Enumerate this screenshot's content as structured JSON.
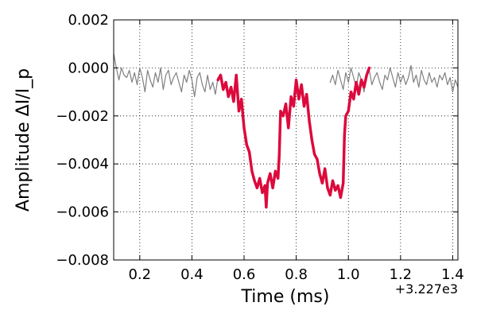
{
  "chart_data": {
    "type": "line",
    "xlabel": "Time (ms)",
    "ylabel": "Amplitude ΔI/I_p",
    "x_offset_label": "+3.227e3",
    "xlim": [
      0.1,
      1.42
    ],
    "ylim": [
      -0.008,
      0.002
    ],
    "xticks": [
      0.2,
      0.4,
      0.6,
      0.8,
      1.0,
      1.2,
      1.4
    ],
    "xtick_labels": [
      "0.2",
      "0.4",
      "0.6",
      "0.8",
      "1.0",
      "1.2",
      "1.4"
    ],
    "yticks": [
      0.002,
      0.0,
      -0.002,
      -0.004,
      -0.006,
      -0.008
    ],
    "ytick_labels": [
      "0.002",
      "0.000",
      "−0.002",
      "−0.004",
      "−0.006",
      "−0.008"
    ],
    "grid": true,
    "series": [
      {
        "color": "#808080",
        "points": [
          [
            0.1,
            0.0006
          ],
          [
            0.11,
            0.0
          ],
          [
            0.12,
            -0.0005
          ],
          [
            0.13,
            0.0
          ],
          [
            0.14,
            -0.0003
          ],
          [
            0.15,
            -0.0004
          ],
          [
            0.16,
            -0.0001
          ],
          [
            0.17,
            -0.0006
          ],
          [
            0.18,
            -0.0002
          ],
          [
            0.19,
            -0.0007
          ],
          [
            0.2,
            0.0
          ],
          [
            0.21,
            -0.0004
          ],
          [
            0.22,
            -0.001
          ],
          [
            0.23,
            -0.0001
          ],
          [
            0.24,
            -0.0005
          ],
          [
            0.25,
            -0.0008
          ],
          [
            0.26,
            -0.0002
          ],
          [
            0.27,
            -0.0006
          ],
          [
            0.28,
            0.0
          ],
          [
            0.29,
            -0.0009
          ],
          [
            0.3,
            -0.0003
          ],
          [
            0.31,
            -0.0001
          ],
          [
            0.32,
            -0.0007
          ],
          [
            0.33,
            -0.0004
          ],
          [
            0.34,
            -0.0002
          ],
          [
            0.35,
            -0.0006
          ],
          [
            0.36,
            -0.001
          ],
          [
            0.37,
            -0.0003
          ],
          [
            0.38,
            -0.0006
          ],
          [
            0.39,
            -0.0001
          ],
          [
            0.4,
            -0.0005
          ],
          [
            0.41,
            -0.0012
          ],
          [
            0.42,
            -0.0004
          ],
          [
            0.43,
            -0.0002
          ],
          [
            0.44,
            -0.0007
          ],
          [
            0.45,
            -0.001
          ],
          [
            0.46,
            -0.0003
          ],
          [
            0.47,
            -0.0009
          ],
          [
            0.48,
            -0.0006
          ],
          [
            0.49,
            -0.0011
          ],
          [
            0.5,
            -0.0004
          ]
        ]
      },
      {
        "color": "#808080",
        "points": [
          [
            0.93,
            -0.0006
          ],
          [
            0.94,
            -0.0003
          ],
          [
            0.95,
            -0.0007
          ],
          [
            0.96,
            -0.0001
          ],
          [
            0.97,
            -0.0005
          ],
          [
            0.98,
            -0.0009
          ],
          [
            0.99,
            -0.0002
          ],
          [
            1.0,
            -0.0006
          ],
          [
            1.01,
            0.0
          ],
          [
            1.02,
            -0.0004
          ],
          [
            1.03,
            -0.0008
          ],
          [
            1.04,
            -0.0002
          ],
          [
            1.05,
            -0.0005
          ],
          [
            1.06,
            -0.001
          ],
          [
            1.07,
            -0.0003
          ],
          [
            1.08,
            -0.0001
          ],
          [
            1.09,
            -0.0007
          ],
          [
            1.1,
            -0.0004
          ],
          [
            1.11,
            -0.0002
          ],
          [
            1.12,
            -0.0006
          ],
          [
            1.13,
            -0.0009
          ],
          [
            1.14,
            -0.0003
          ],
          [
            1.15,
            -0.0005
          ],
          [
            1.16,
            0.0
          ],
          [
            1.17,
            -0.0004
          ],
          [
            1.18,
            -0.0008
          ],
          [
            1.19,
            -0.0002
          ],
          [
            1.2,
            -0.0006
          ],
          [
            1.21,
            -0.0003
          ],
          [
            1.22,
            -0.0007
          ],
          [
            1.23,
            -0.0004
          ],
          [
            1.24,
            0.0001
          ],
          [
            1.25,
            -0.0006
          ],
          [
            1.26,
            -0.0003
          ],
          [
            1.27,
            -0.0008
          ],
          [
            1.28,
            -0.0001
          ],
          [
            1.29,
            -0.0005
          ],
          [
            1.3,
            -0.0007
          ],
          [
            1.31,
            -0.0002
          ],
          [
            1.32,
            -0.0006
          ],
          [
            1.33,
            -0.0004
          ],
          [
            1.34,
            -0.0008
          ],
          [
            1.35,
            -0.0003
          ],
          [
            1.36,
            -0.0005
          ],
          [
            1.37,
            -0.0002
          ],
          [
            1.38,
            -0.0007
          ],
          [
            1.39,
            -0.0004
          ],
          [
            1.4,
            -0.001
          ],
          [
            1.41,
            -0.0005
          ],
          [
            1.42,
            -0.0008
          ]
        ]
      },
      {
        "color": "#dc0a3c",
        "points": [
          [
            0.5,
            -0.0005
          ],
          [
            0.51,
            -0.0003
          ],
          [
            0.52,
            -0.0009
          ],
          [
            0.53,
            -0.0006
          ],
          [
            0.54,
            -0.0012
          ],
          [
            0.55,
            -0.0008
          ],
          [
            0.56,
            -0.0014
          ],
          [
            0.57,
            -0.0003
          ],
          [
            0.58,
            -0.0018
          ],
          [
            0.59,
            -0.0013
          ],
          [
            0.6,
            -0.0025
          ],
          [
            0.61,
            -0.0032
          ],
          [
            0.62,
            -0.0035
          ],
          [
            0.63,
            -0.0043
          ],
          [
            0.64,
            -0.0047
          ],
          [
            0.65,
            -0.005
          ],
          [
            0.66,
            -0.0046
          ],
          [
            0.67,
            -0.0052
          ],
          [
            0.68,
            -0.0049
          ],
          [
            0.685,
            -0.0058
          ],
          [
            0.69,
            -0.0048
          ],
          [
            0.7,
            -0.0044
          ],
          [
            0.71,
            -0.005
          ],
          [
            0.72,
            -0.0043
          ],
          [
            0.73,
            -0.0046
          ],
          [
            0.735,
            -0.0036
          ],
          [
            0.74,
            -0.0018
          ],
          [
            0.75,
            -0.002
          ],
          [
            0.76,
            -0.0015
          ],
          [
            0.77,
            -0.0025
          ],
          [
            0.78,
            -0.0012
          ],
          [
            0.79,
            -0.0016
          ],
          [
            0.8,
            -0.0005
          ],
          [
            0.81,
            -0.0013
          ],
          [
            0.82,
            -0.0007
          ],
          [
            0.83,
            -0.0016
          ],
          [
            0.84,
            -0.0011
          ],
          [
            0.85,
            -0.0022
          ],
          [
            0.86,
            -0.003
          ],
          [
            0.87,
            -0.0036
          ],
          [
            0.88,
            -0.0038
          ],
          [
            0.89,
            -0.0044
          ],
          [
            0.9,
            -0.0048
          ],
          [
            0.91,
            -0.0042
          ],
          [
            0.92,
            -0.005
          ],
          [
            0.93,
            -0.0053
          ],
          [
            0.94,
            -0.0047
          ],
          [
            0.95,
            -0.0051
          ],
          [
            0.96,
            -0.0049
          ],
          [
            0.97,
            -0.0054
          ],
          [
            0.98,
            -0.0048
          ],
          [
            0.985,
            -0.0028
          ],
          [
            0.99,
            -0.002
          ],
          [
            1.0,
            -0.0018
          ],
          [
            1.01,
            -0.001
          ],
          [
            1.02,
            -0.0013
          ],
          [
            1.03,
            -0.0006
          ],
          [
            1.04,
            -0.0011
          ],
          [
            1.05,
            -0.0005
          ],
          [
            1.06,
            -0.0008
          ],
          [
            1.07,
            -0.0003
          ],
          [
            1.08,
            0.0
          ]
        ]
      }
    ]
  }
}
